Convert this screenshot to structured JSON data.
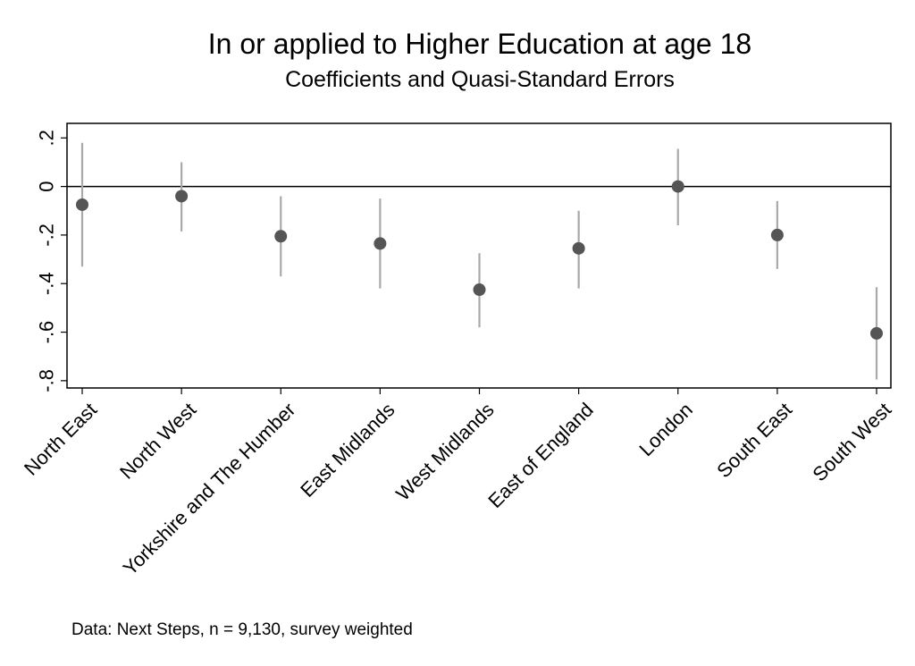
{
  "chart_data": {
    "type": "scatter",
    "title": "In or applied to Higher Education at age 18",
    "subtitle": "Coefficients and Quasi-Standard Errors",
    "xlabel": "",
    "ylabel": "",
    "ylim": [
      -0.83,
      0.26
    ],
    "yticks": [
      0.2,
      0,
      -0.2,
      -0.4,
      -0.6,
      -0.8
    ],
    "ytick_labels": [
      ".2",
      "0",
      "-.2",
      "-.4",
      "-.6",
      "-.8"
    ],
    "reference_line": 0,
    "grid": false,
    "categories": [
      "North East",
      "North West",
      "Yorkshire and The Humber",
      "East Midlands",
      "West Midlands",
      "East of England",
      "London",
      "South East",
      "South West"
    ],
    "values": [
      -0.075,
      -0.04,
      -0.205,
      -0.235,
      -0.425,
      -0.255,
      0.0,
      -0.2,
      -0.605
    ],
    "ci_low": [
      -0.33,
      -0.185,
      -0.37,
      -0.42,
      -0.58,
      -0.42,
      -0.16,
      -0.34,
      -0.795
    ],
    "ci_high": [
      0.18,
      0.1,
      -0.04,
      -0.05,
      -0.275,
      -0.1,
      0.155,
      -0.06,
      -0.415
    ],
    "note": "Data: Next Steps, n = 9,130, survey weighted",
    "colors": {
      "marker": "#555555",
      "error_bar": "#a9a9a9",
      "axis": "#000000",
      "zero_line": "#000000"
    }
  }
}
